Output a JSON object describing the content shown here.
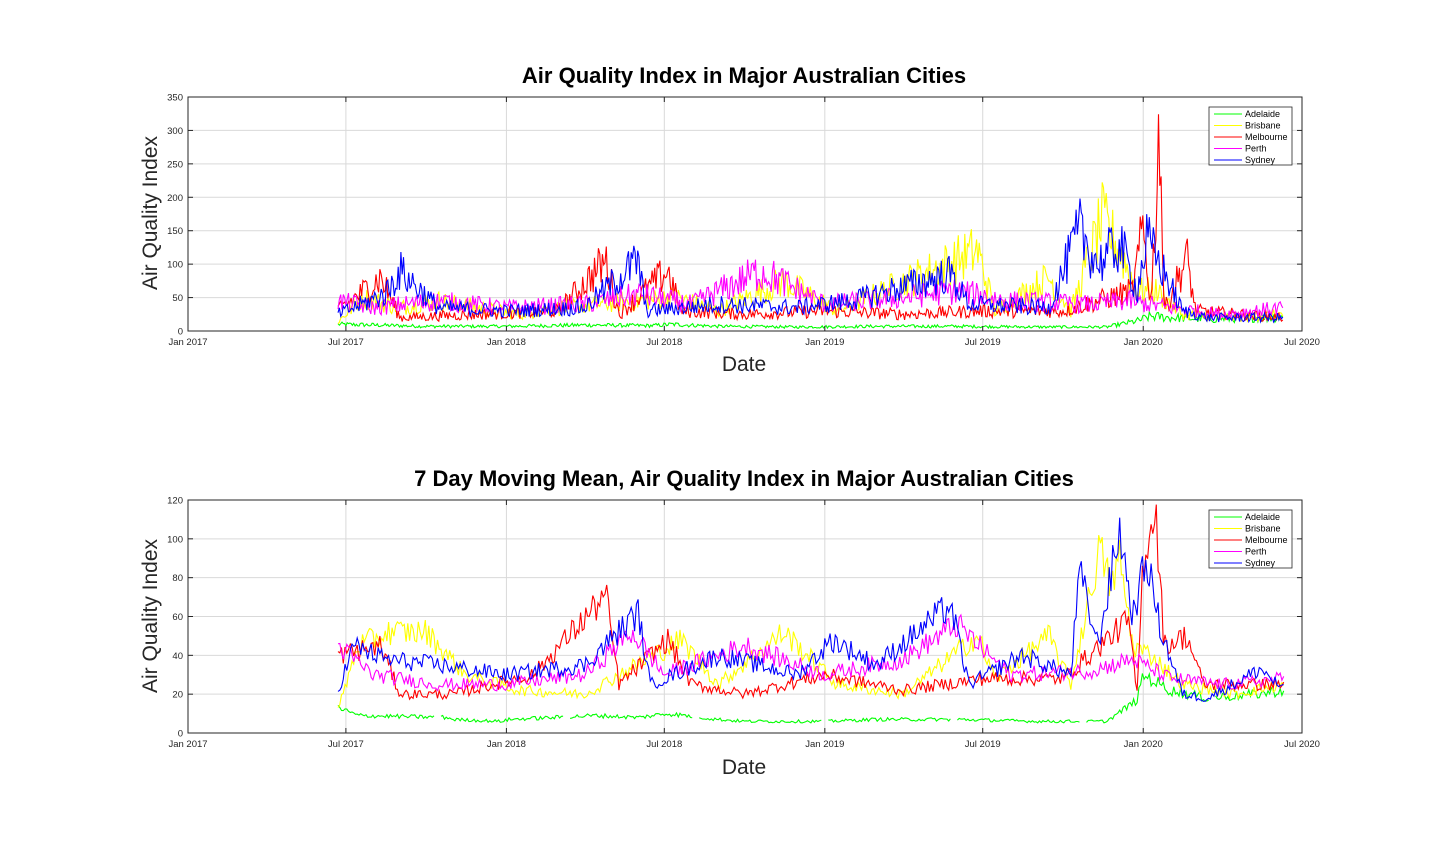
{
  "chart_data": [
    {
      "type": "line",
      "title": "Air Quality Index in Major Australian Cities",
      "xlabel": "Date",
      "ylabel": "Air Quality Index",
      "xlim": [
        "2017-01-01",
        "2020-07-01"
      ],
      "ylim": [
        0,
        350
      ],
      "x_ticks": [
        "2017-01-01",
        "2017-07-01",
        "2018-01-01",
        "2018-07-01",
        "2019-01-01",
        "2019-07-01",
        "2020-01-01",
        "2020-07-01"
      ],
      "x_tick_labels": [
        "Jan 2017",
        "Jul 2017",
        "Jan 2018",
        "Jul 2018",
        "Jan 2019",
        "Jul 2019",
        "Jan 2020",
        "Jul 2020"
      ],
      "y_ticks": [
        0,
        50,
        100,
        150,
        200,
        250,
        300,
        350
      ],
      "grid": true,
      "legend_position": "top-right",
      "series": [
        {
          "name": "Adelaide",
          "color": "#00ff00",
          "points": [
            [
              "2017-06-22",
              10
            ],
            [
              "2017-08-01",
              9
            ],
            [
              "2017-10-01",
              7
            ],
            [
              "2018-01-01",
              7
            ],
            [
              "2018-04-01",
              9
            ],
            [
              "2018-06-15",
              8
            ],
            [
              "2018-07-10",
              10
            ],
            [
              "2018-09-01",
              7
            ],
            [
              "2018-12-01",
              6
            ],
            [
              "2019-03-01",
              7
            ],
            [
              "2019-06-01",
              7
            ],
            [
              "2019-09-01",
              6
            ],
            [
              "2019-11-20",
              6
            ],
            [
              "2019-12-25",
              15
            ],
            [
              "2020-01-10",
              22
            ],
            [
              "2020-02-01",
              20
            ],
            [
              "2020-03-15",
              18
            ],
            [
              "2020-05-10",
              20
            ],
            [
              "2020-06-10",
              20
            ]
          ]
        },
        {
          "name": "Brisbane",
          "color": "#ffff00",
          "points": [
            [
              "2017-06-22",
              14
            ],
            [
              "2017-07-20",
              50
            ],
            [
              "2017-09-01",
              35
            ],
            [
              "2017-10-15",
              45
            ],
            [
              "2018-01-15",
              25
            ],
            [
              "2018-03-01",
              35
            ],
            [
              "2018-07-15",
              50
            ],
            [
              "2018-09-01",
              30
            ],
            [
              "2018-11-15",
              75
            ],
            [
              "2019-01-15",
              30
            ],
            [
              "2019-06-25",
              120
            ],
            [
              "2019-07-15",
              30
            ],
            [
              "2019-09-15",
              80
            ],
            [
              "2019-10-10",
              30
            ],
            [
              "2019-11-15",
              165
            ],
            [
              "2019-12-05",
              120
            ],
            [
              "2019-12-25",
              60
            ],
            [
              "2020-01-15",
              60
            ],
            [
              "2020-02-15",
              25
            ],
            [
              "2020-04-15",
              20
            ],
            [
              "2020-06-10",
              25
            ]
          ]
        },
        {
          "name": "Melbourne",
          "color": "#ff0000",
          "points": [
            [
              "2017-06-22",
              30
            ],
            [
              "2017-08-10",
              80
            ],
            [
              "2017-09-01",
              20
            ],
            [
              "2017-12-01",
              25
            ],
            [
              "2018-03-01",
              30
            ],
            [
              "2018-04-25",
              105
            ],
            [
              "2018-05-10",
              25
            ],
            [
              "2018-07-05",
              90
            ],
            [
              "2018-07-20",
              30
            ],
            [
              "2018-10-01",
              25
            ],
            [
              "2019-01-01",
              30
            ],
            [
              "2019-04-01",
              25
            ],
            [
              "2019-07-01",
              30
            ],
            [
              "2019-10-01",
              30
            ],
            [
              "2019-12-20",
              60
            ],
            [
              "2020-01-01",
              155
            ],
            [
              "2020-01-10",
              40
            ],
            [
              "2020-01-20",
              316
            ],
            [
              "2020-01-25",
              30
            ],
            [
              "2020-02-20",
              110
            ],
            [
              "2020-03-01",
              30
            ],
            [
              "2020-06-10",
              20
            ]
          ]
        },
        {
          "name": "Perth",
          "color": "#ff00ff",
          "points": [
            [
              "2017-06-22",
              45
            ],
            [
              "2017-08-01",
              35
            ],
            [
              "2017-10-15",
              45
            ],
            [
              "2018-01-01",
              35
            ],
            [
              "2018-04-01",
              40
            ],
            [
              "2018-06-01",
              55
            ],
            [
              "2018-08-01",
              40
            ],
            [
              "2018-10-20",
              90
            ],
            [
              "2019-01-01",
              40
            ],
            [
              "2019-04-01",
              50
            ],
            [
              "2019-06-01",
              60
            ],
            [
              "2019-08-01",
              45
            ],
            [
              "2019-11-01",
              40
            ],
            [
              "2019-12-15",
              45
            ],
            [
              "2020-02-01",
              35
            ],
            [
              "2020-04-01",
              25
            ],
            [
              "2020-06-10",
              35
            ]
          ]
        },
        {
          "name": "Sydney",
          "color": "#0000ff",
          "points": [
            [
              "2017-06-22",
              25
            ],
            [
              "2017-08-15",
              55
            ],
            [
              "2017-09-01",
              90
            ],
            [
              "2017-10-15",
              35
            ],
            [
              "2018-01-01",
              30
            ],
            [
              "2018-04-01",
              35
            ],
            [
              "2018-06-01",
              105
            ],
            [
              "2018-06-10",
              30
            ],
            [
              "2018-09-01",
              40
            ],
            [
              "2018-12-01",
              35
            ],
            [
              "2019-02-01",
              45
            ],
            [
              "2019-05-25",
              85
            ],
            [
              "2019-06-15",
              40
            ],
            [
              "2019-09-15",
              35
            ],
            [
              "2019-10-20",
              150
            ],
            [
              "2019-11-10",
              100
            ],
            [
              "2019-12-05",
              130
            ],
            [
              "2019-12-25",
              60
            ],
            [
              "2020-01-05",
              135
            ],
            [
              "2020-01-20",
              100
            ],
            [
              "2020-02-15",
              30
            ],
            [
              "2020-03-15",
              20
            ],
            [
              "2020-06-10",
              20
            ]
          ]
        }
      ]
    },
    {
      "type": "line",
      "title": "7 Day Moving Mean, Air Quality Index in Major Australian Cities",
      "xlabel": "Date",
      "ylabel": "Air Quality Index",
      "xlim": [
        "2017-01-01",
        "2020-07-01"
      ],
      "ylim": [
        0,
        120
      ],
      "x_ticks": [
        "2017-01-01",
        "2017-07-01",
        "2018-01-01",
        "2018-07-01",
        "2019-01-01",
        "2019-07-01",
        "2020-01-01",
        "2020-07-01"
      ],
      "x_tick_labels": [
        "Jan 2017",
        "Jul 2017",
        "Jan 2018",
        "Jul 2018",
        "Jan 2019",
        "Jul 2019",
        "Jan 2020",
        "Jul 2020"
      ],
      "y_ticks": [
        0,
        20,
        40,
        60,
        80,
        100,
        120
      ],
      "grid": true,
      "legend_position": "top-right",
      "series": [
        {
          "name": "Adelaide",
          "color": "#00ff00",
          "points": [
            [
              "2017-06-22",
              13
            ],
            [
              "2017-07-15",
              9
            ],
            [
              "2017-10-25",
              8
            ],
            [
              "2017-11-01",
              7
            ],
            [
              "2017-12-25",
              6
            ],
            [
              "2018-01-05",
              7
            ],
            [
              "2018-04-15",
              9
            ],
            [
              "2018-06-01",
              8
            ],
            [
              "2018-07-05",
              10
            ],
            [
              "2018-09-01",
              7
            ],
            [
              "2018-10-01",
              6
            ],
            [
              "2019-01-01",
              6
            ],
            [
              "2019-03-01",
              7
            ],
            [
              "2019-06-01",
              7
            ],
            [
              "2019-09-01",
              6
            ],
            [
              "2019-11-20",
              6
            ],
            [
              "2019-12-25",
              17
            ],
            [
              "2020-01-01",
              30
            ],
            [
              "2020-02-01",
              22
            ],
            [
              "2020-03-15",
              18
            ],
            [
              "2020-05-10",
              20
            ],
            [
              "2020-06-10",
              22
            ]
          ]
        },
        {
          "name": "Brisbane",
          "color": "#ffff00",
          "points": [
            [
              "2017-06-22",
              12
            ],
            [
              "2017-07-15",
              45
            ],
            [
              "2017-08-20",
              52
            ],
            [
              "2017-10-01",
              52
            ],
            [
              "2017-11-15",
              30
            ],
            [
              "2018-01-15",
              22
            ],
            [
              "2018-04-01",
              20
            ],
            [
              "2018-07-20",
              48
            ],
            [
              "2018-09-01",
              25
            ],
            [
              "2018-11-15",
              52
            ],
            [
              "2019-01-15",
              25
            ],
            [
              "2019-04-01",
              20
            ],
            [
              "2019-06-25",
              50
            ],
            [
              "2019-07-15",
              28
            ],
            [
              "2019-09-15",
              50
            ],
            [
              "2019-10-10",
              25
            ],
            [
              "2019-11-12",
              95
            ],
            [
              "2019-11-25",
              75
            ],
            [
              "2019-12-05",
              90
            ],
            [
              "2019-12-20",
              45
            ],
            [
              "2020-01-10",
              40
            ],
            [
              "2020-02-15",
              25
            ],
            [
              "2020-04-15",
              20
            ],
            [
              "2020-06-10",
              25
            ]
          ]
        },
        {
          "name": "Melbourne",
          "color": "#ff0000",
          "points": [
            [
              "2017-06-22",
              40
            ],
            [
              "2017-08-10",
              45
            ],
            [
              "2017-09-01",
              20
            ],
            [
              "2017-11-01",
              20
            ],
            [
              "2018-02-01",
              30
            ],
            [
              "2018-04-25",
              71
            ],
            [
              "2018-05-10",
              25
            ],
            [
              "2018-07-05",
              48
            ],
            [
              "2018-08-01",
              25
            ],
            [
              "2018-10-01",
              20
            ],
            [
              "2019-01-01",
              30
            ],
            [
              "2019-04-01",
              22
            ],
            [
              "2019-07-01",
              28
            ],
            [
              "2019-10-01",
              28
            ],
            [
              "2019-12-15",
              58
            ],
            [
              "2019-12-25",
              20
            ],
            [
              "2020-01-01",
              90
            ],
            [
              "2020-01-15",
              117
            ],
            [
              "2020-01-25",
              45
            ],
            [
              "2020-02-20",
              50
            ],
            [
              "2020-03-10",
              25
            ],
            [
              "2020-06-10",
              25
            ]
          ]
        },
        {
          "name": "Perth",
          "color": "#ff00ff",
          "points": [
            [
              "2017-06-22",
              45
            ],
            [
              "2017-08-01",
              30
            ],
            [
              "2017-10-15",
              25
            ],
            [
              "2018-01-01",
              25
            ],
            [
              "2018-04-01",
              30
            ],
            [
              "2018-05-25",
              52
            ],
            [
              "2018-07-01",
              30
            ],
            [
              "2018-10-01",
              45
            ],
            [
              "2019-01-01",
              30
            ],
            [
              "2019-04-01",
              38
            ],
            [
              "2019-06-01",
              56
            ],
            [
              "2019-08-01",
              30
            ],
            [
              "2019-11-01",
              32
            ],
            [
              "2019-12-20",
              38
            ],
            [
              "2020-02-01",
              28
            ],
            [
              "2020-04-01",
              25
            ],
            [
              "2020-06-10",
              28
            ]
          ]
        },
        {
          "name": "Sydney",
          "color": "#0000ff",
          "points": [
            [
              "2017-06-22",
              22
            ],
            [
              "2017-07-10",
              45
            ],
            [
              "2017-08-15",
              38
            ],
            [
              "2017-10-15",
              35
            ],
            [
              "2018-01-01",
              30
            ],
            [
              "2018-04-01",
              35
            ],
            [
              "2018-06-01",
              62
            ],
            [
              "2018-06-15",
              25
            ],
            [
              "2018-09-01",
              40
            ],
            [
              "2018-12-01",
              30
            ],
            [
              "2019-01-10",
              48
            ],
            [
              "2019-03-01",
              35
            ],
            [
              "2019-05-25",
              66
            ],
            [
              "2019-06-15",
              25
            ],
            [
              "2019-08-15",
              40
            ],
            [
              "2019-10-10",
              30
            ],
            [
              "2019-10-20",
              83
            ],
            [
              "2019-11-10",
              45
            ],
            [
              "2019-12-05",
              105
            ],
            [
              "2019-12-20",
              60
            ],
            [
              "2020-01-05",
              90
            ],
            [
              "2020-01-20",
              55
            ],
            [
              "2020-02-15",
              20
            ],
            [
              "2020-03-15",
              18
            ],
            [
              "2020-05-15",
              33
            ],
            [
              "2020-06-10",
              22
            ]
          ]
        }
      ]
    }
  ]
}
